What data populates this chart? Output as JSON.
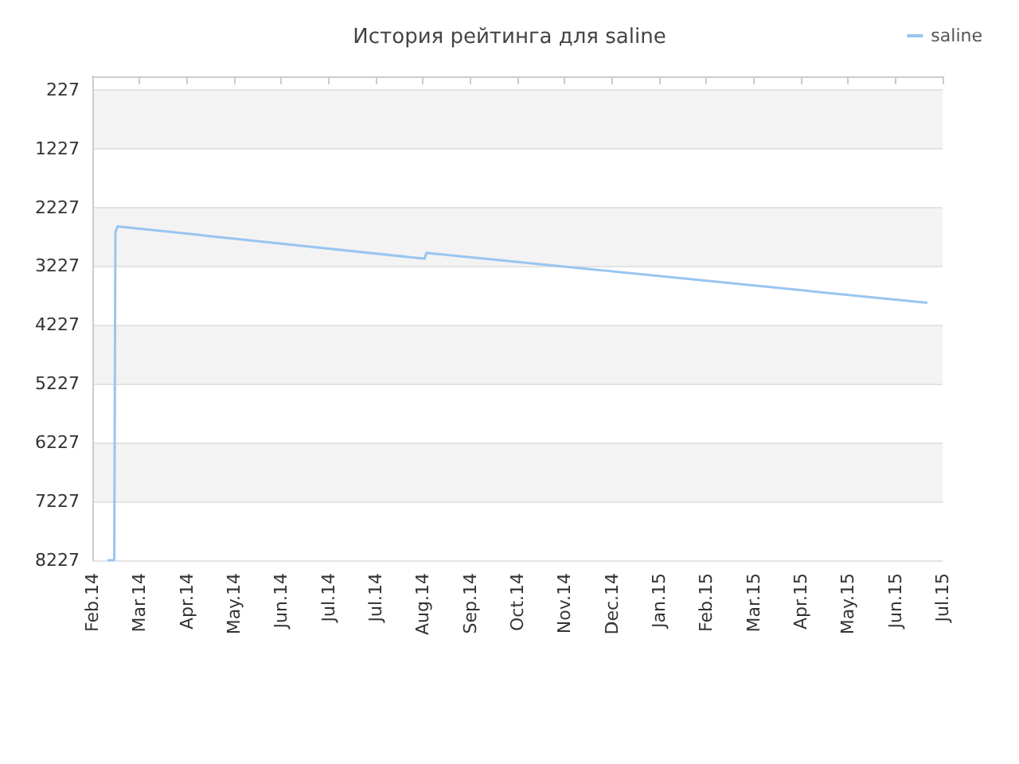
{
  "chart_data": {
    "type": "line",
    "title": "История рейтинга для saline",
    "x": [
      "2014-02-22",
      "2014-02-26",
      "2014-02-26T16:00",
      "2014-02-28",
      "2014-08-29",
      "2014-08-30",
      "2015-06-23"
    ],
    "series": [
      {
        "name": "saline",
        "color": "#99c5f0",
        "values": [
          8227,
          8227,
          2650,
          2550,
          3100,
          3000,
          3850
        ]
      }
    ],
    "xlim": [
      "2014-02-13",
      "2015-07-02"
    ],
    "xticks": [
      {
        "value": "2014-02-13",
        "label": "Feb.14"
      },
      {
        "value": "2014-03-13",
        "label": "Mar.14"
      },
      {
        "value": "2014-04-10",
        "label": "Apr.14"
      },
      {
        "value": "2014-05-08",
        "label": "May.14"
      },
      {
        "value": "2014-06-05",
        "label": "Jun.14"
      },
      {
        "value": "2014-07-03",
        "label": "Jul.14"
      },
      {
        "value": "2014-07-31",
        "label": "Jul.14"
      },
      {
        "value": "2014-08-28",
        "label": "Aug.14"
      },
      {
        "value": "2014-09-25",
        "label": "Sep.14"
      },
      {
        "value": "2014-10-23",
        "label": "Oct.14"
      },
      {
        "value": "2014-11-20",
        "label": "Nov.14"
      },
      {
        "value": "2014-12-18",
        "label": "Dec.14"
      },
      {
        "value": "2015-01-15",
        "label": "Jan.15"
      },
      {
        "value": "2015-02-12",
        "label": "Feb.15"
      },
      {
        "value": "2015-03-12",
        "label": "Mar.15"
      },
      {
        "value": "2015-04-09",
        "label": "Apr.15"
      },
      {
        "value": "2015-05-07",
        "label": "May.15"
      },
      {
        "value": "2015-06-04",
        "label": "Jun.15"
      },
      {
        "value": "2015-07-02",
        "label": "Jul.15"
      }
    ],
    "ylim": [
      8227,
      0
    ],
    "yticks": [
      227,
      1227,
      2227,
      3227,
      4227,
      5227,
      6227,
      7227,
      8227
    ],
    "grid": "y",
    "legend": "top right",
    "marker": "none",
    "line_style": "solid"
  }
}
